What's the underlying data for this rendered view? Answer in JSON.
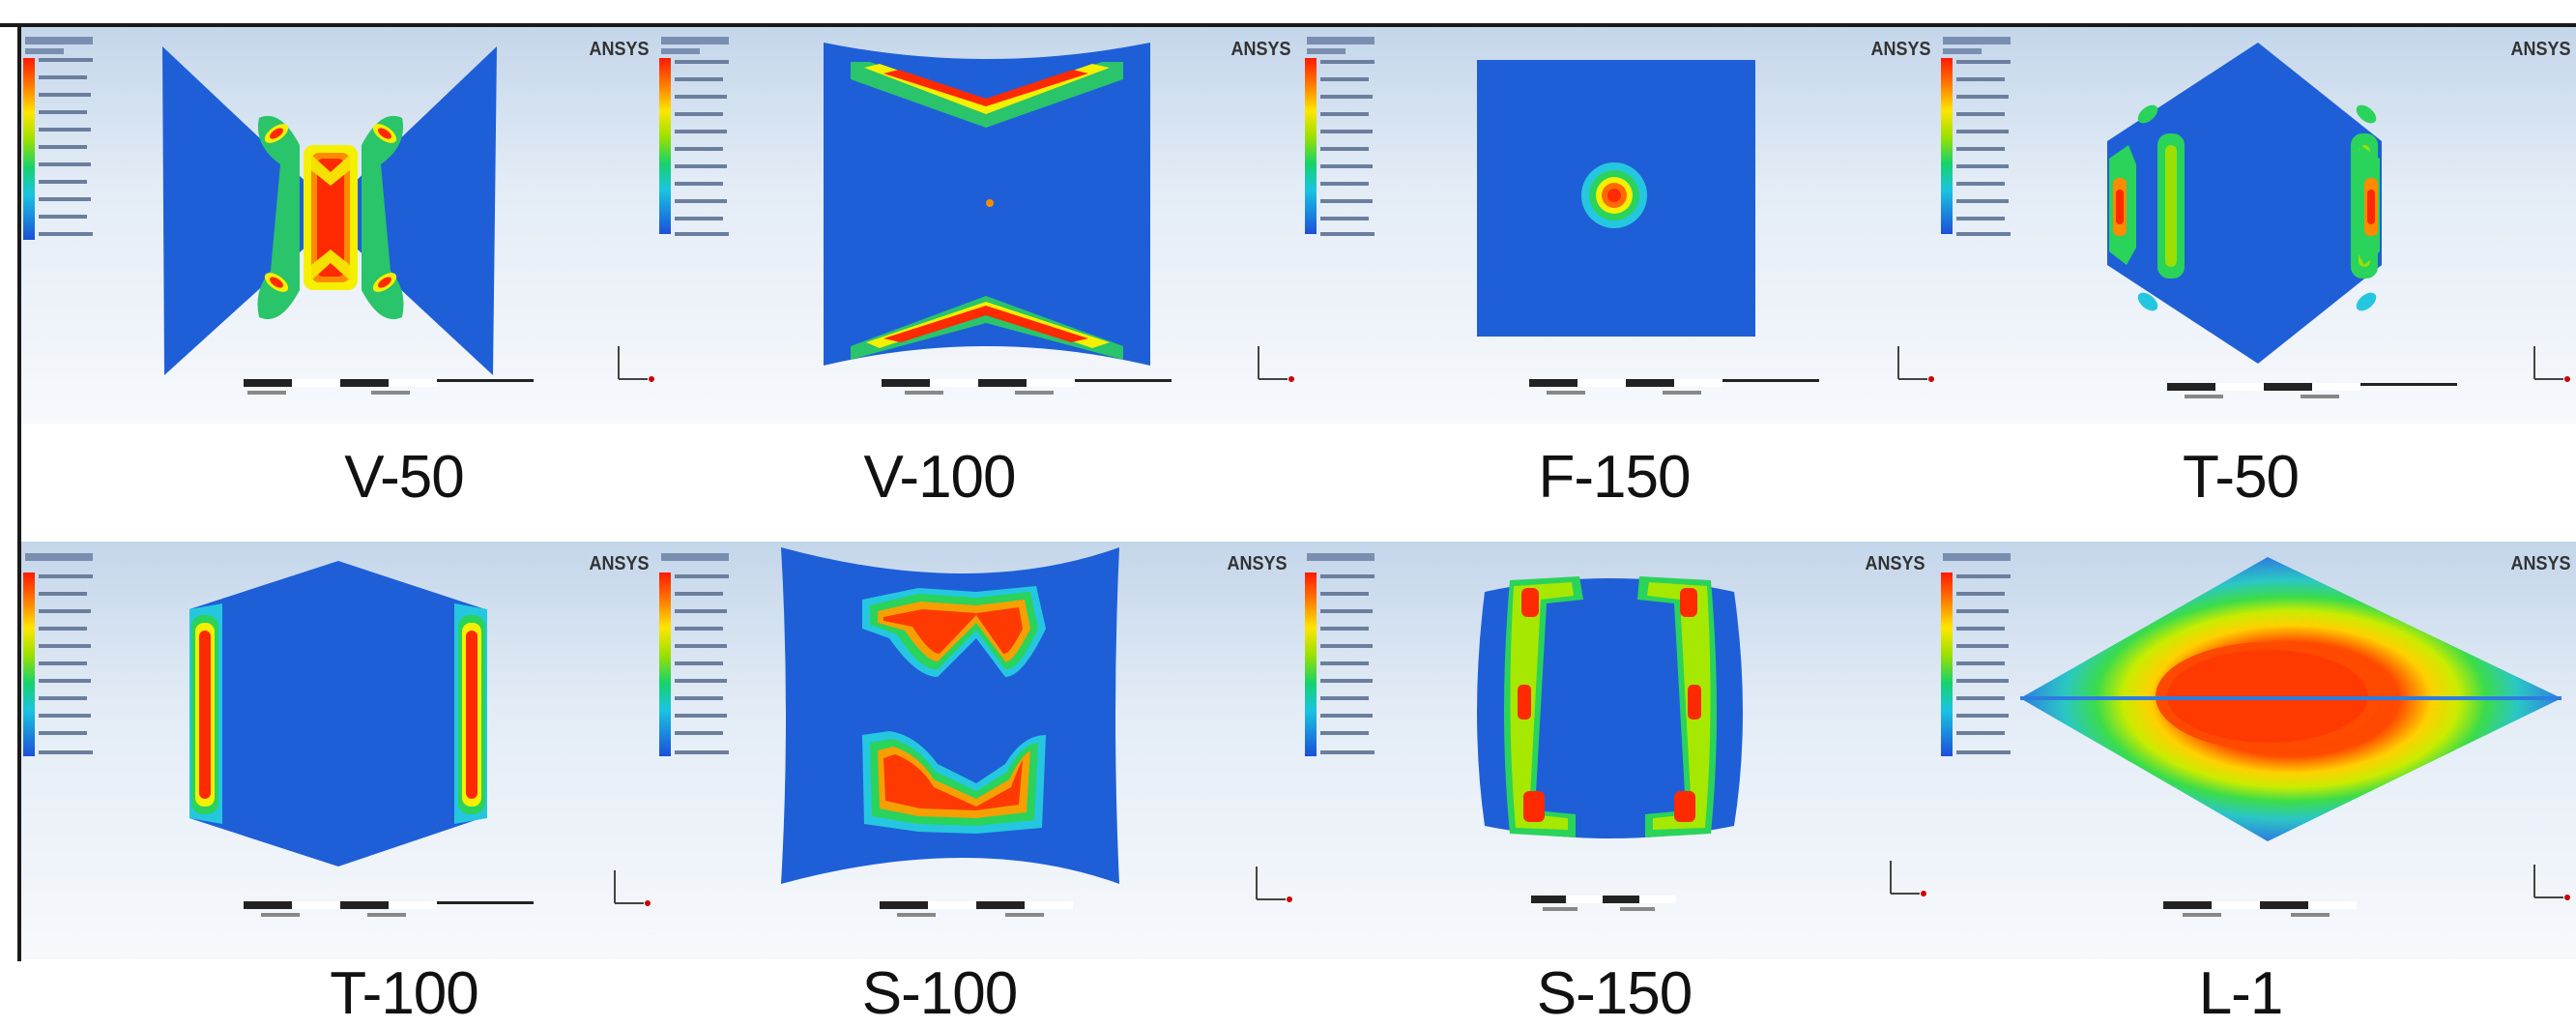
{
  "brand": "ANSYS",
  "panels": [
    {
      "id": "v50",
      "label": "V-50",
      "shape": "v-bowtie"
    },
    {
      "id": "v100",
      "label": "V-100",
      "shape": "v-chevron"
    },
    {
      "id": "f150",
      "label": "F-150",
      "shape": "flat-square"
    },
    {
      "id": "t50",
      "label": "T-50",
      "shape": "hexagon-bars"
    },
    {
      "id": "t100",
      "label": "T-100",
      "shape": "hexagon-sides"
    },
    {
      "id": "s100",
      "label": "S-100",
      "shape": "curved-sheet"
    },
    {
      "id": "s150",
      "label": "S-150",
      "shape": "barrel"
    },
    {
      "id": "l1",
      "label": "L-1",
      "shape": "rhombus"
    }
  ],
  "colors": {
    "plate_blue": "#1e5fd8",
    "high_red": "#ff2a00",
    "orange": "#ff8a00",
    "yellow": "#f5f000",
    "green": "#22d35a",
    "cyan": "#25c7e0"
  }
}
